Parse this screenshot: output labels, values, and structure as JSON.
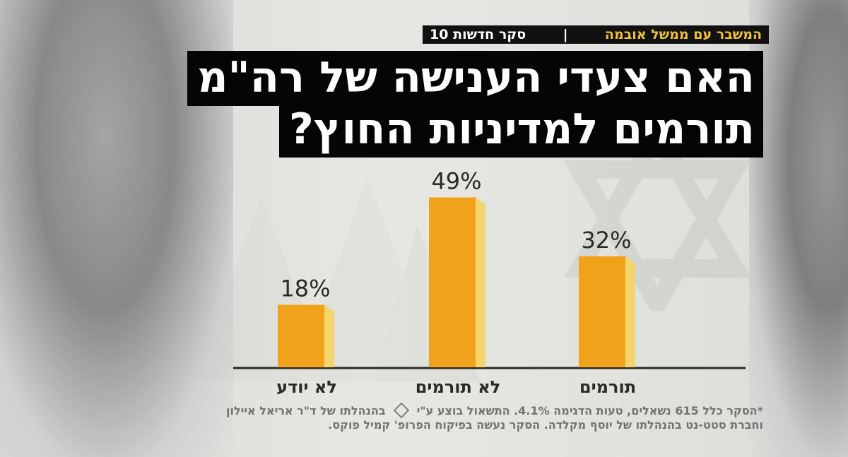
{
  "header": {
    "title": "סקר חדשות 10",
    "subtitle": "המשבר עם ממשל אובמה"
  },
  "question": {
    "line1": "האם צעדי הענישה של רה\"מ",
    "line2": "תורמים למדיניות החוץ?"
  },
  "chart_data": {
    "type": "bar",
    "title": "האם צעדי הענישה של רה\"מ תורמים למדיניות החוץ?",
    "categories": [
      "לא יודע",
      "לא תורמים",
      "תורמים"
    ],
    "values": [
      18,
      49,
      32
    ],
    "value_labels": [
      "18%",
      "49%",
      "32%"
    ],
    "xlabel": "",
    "ylabel": "",
    "ylim": [
      0,
      55
    ],
    "grid": false,
    "colors": {
      "bar_front": "#f0a31a",
      "bar_top": "#f7c958",
      "bar_side": "#f3d56b",
      "axis": "#2a2a2a",
      "text": "#2a2a2a"
    }
  },
  "footer": {
    "line1": "*הסקר כלל 615 נשאלים, טעות הדגימה 4.1%. התשאול בוצע ע\"י",
    "line1b": "בהנהלתו של ד\"ר אריאל איילון",
    "line2": "וחברת סטט-נט בהנהלתו של יוסף מקלדה. הסקר נעשה בפיקוח הפרופ' קמיל פוקס."
  }
}
